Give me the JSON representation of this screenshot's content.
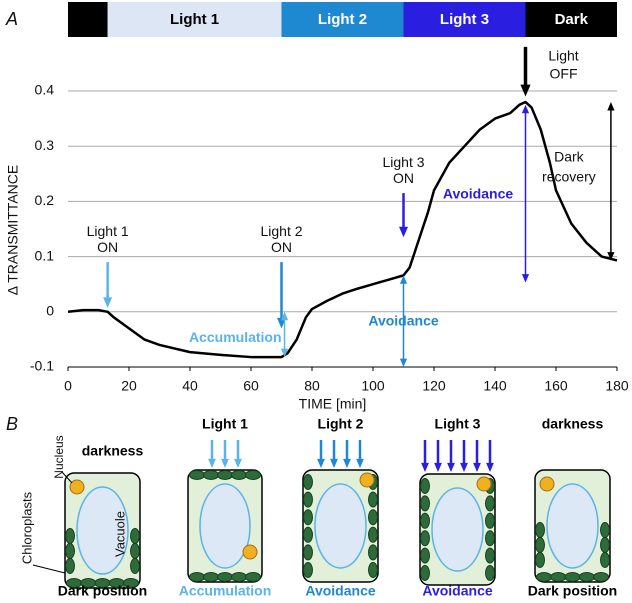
{
  "chart_data": {
    "type": "line",
    "xlabel": "TIME [min]",
    "ylabel": "Δ TRANSMITTANCE",
    "xlim": [
      0,
      180
    ],
    "ylim": [
      -0.1,
      0.4
    ],
    "xticks": [
      0,
      20,
      40,
      60,
      80,
      100,
      120,
      140,
      160,
      180
    ],
    "yticks": [
      -0.1,
      0,
      0.1,
      0.2,
      0.3,
      0.4
    ],
    "grid": true,
    "x": [
      0,
      5,
      10,
      13,
      15,
      20,
      25,
      30,
      40,
      50,
      60,
      70,
      72,
      75,
      78,
      80,
      85,
      90,
      95,
      100,
      105,
      110,
      112,
      115,
      118,
      120,
      125,
      130,
      135,
      140,
      145,
      148,
      150,
      152,
      155,
      158,
      160,
      165,
      170,
      175,
      180
    ],
    "series": [
      {
        "color": "#000000",
        "values": [
          0,
          0.003,
          0.003,
          0,
          -0.01,
          -0.03,
          -0.05,
          -0.06,
          -0.073,
          -0.078,
          -0.082,
          -0.082,
          -0.075,
          -0.05,
          -0.01,
          0.005,
          0.02,
          0.033,
          0.042,
          0.05,
          0.058,
          0.066,
          0.08,
          0.13,
          0.18,
          0.22,
          0.27,
          0.3,
          0.33,
          0.35,
          0.36,
          0.375,
          0.38,
          0.37,
          0.33,
          0.27,
          0.22,
          0.16,
          0.125,
          0.1,
          0.093
        ]
      }
    ],
    "light_periods": [
      {
        "label": null,
        "start": 0,
        "end": 13,
        "color": "#000000",
        "text_color": "#ffffff"
      },
      {
        "label": "Light 1",
        "start": 13,
        "end": 70,
        "color": "#dce6f5",
        "text_color": "#000000"
      },
      {
        "label": "Light 2",
        "start": 70,
        "end": 110,
        "color": "#1e88d0",
        "text_color": "#ffffff"
      },
      {
        "label": "Light 3",
        "start": 110,
        "end": 150,
        "color": "#2a1ee0",
        "text_color": "#ffffff"
      },
      {
        "label": "Dark",
        "start": 150,
        "end": 180,
        "color": "#000000",
        "text_color": "#ffffff"
      }
    ],
    "arrows": [
      {
        "lines": [
          "Light 1",
          "ON"
        ],
        "x": 13,
        "from": 0.09,
        "to": 0.007,
        "color": "#5ab4e8"
      },
      {
        "lines": [
          "Light 2",
          "ON"
        ],
        "x": 70,
        "from": 0.09,
        "to": -0.03,
        "color": "#1e88d0"
      },
      {
        "lines": [
          "Light 3",
          "ON"
        ],
        "x": 110,
        "from": 0.215,
        "to": 0.135,
        "color": "#2a1ee0"
      },
      {
        "lines": [
          "Light",
          "OFF"
        ],
        "x": 150,
        "from": 0.48,
        "to": 0.39,
        "color": "#000000"
      }
    ],
    "spans": [
      {
        "text": "Accumulation",
        "x": 71,
        "from": -0.082,
        "to": 0,
        "color": "#5ab4e8"
      },
      {
        "text": "Avoidance",
        "x": 110,
        "from": -0.1,
        "to": 0.066,
        "color": "#1e88d0"
      },
      {
        "text": "Avoidance",
        "x": 150,
        "from": 0.053,
        "to": 0.375,
        "color": "#2a1ee0"
      },
      {
        "lines": [
          "Dark",
          "recovery"
        ],
        "x": 178,
        "from": 0.093,
        "to": 0.38,
        "color": "#000000"
      }
    ]
  },
  "panel_labels": [
    "A",
    "B"
  ],
  "labels": {
    "nucleus": "Nucleus",
    "vacuole": "Vacuole",
    "chloroplasts": "Chloroplasts"
  },
  "cells": [
    {
      "top_label": "darkness",
      "top_color": "#000000",
      "bottom_label": "Dark position",
      "bottom_color": "#000000"
    },
    {
      "top_label": "Light 1",
      "top_color": "#000000",
      "bottom_label": "Accumulation",
      "bottom_color": "#5ab4e8"
    },
    {
      "top_label": "Light 2",
      "top_color": "#000000",
      "bottom_label": "Avoidance",
      "bottom_color": "#1e88d0"
    },
    {
      "top_label": "Light 3",
      "top_color": "#000000",
      "bottom_label": "Avoidance",
      "bottom_color": "#2a1ee0"
    },
    {
      "top_label": "darkness",
      "top_color": "#000000",
      "bottom_label": "Dark position",
      "bottom_color": "#000000"
    }
  ]
}
